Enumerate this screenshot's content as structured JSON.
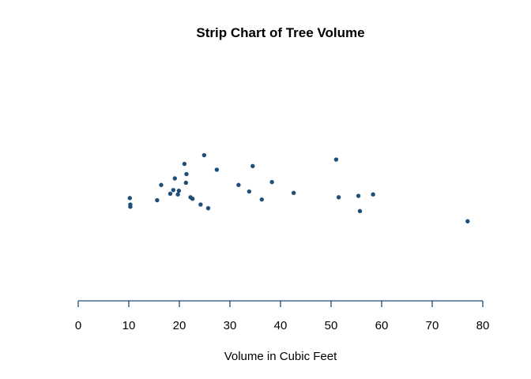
{
  "chart_data": {
    "type": "scatter",
    "title": "Strip Chart of Tree Volume",
    "xlabel": "Volume in Cubic Feet",
    "ylabel": "",
    "xlim": [
      0,
      80
    ],
    "xticks": [
      0,
      10,
      20,
      30,
      40,
      50,
      60,
      70,
      80
    ],
    "tick_labels": [
      "0",
      "10",
      "20",
      "30",
      "40",
      "50",
      "60",
      "70",
      "80"
    ],
    "grid": false,
    "jitter": true,
    "point_color": "#1f4e79",
    "axis_color": "#1f4e79",
    "values": [
      10.3,
      10.3,
      10.2,
      16.4,
      18.8,
      19.7,
      15.6,
      18.2,
      22.6,
      19.9,
      24.2,
      21.0,
      21.4,
      21.3,
      19.1,
      22.2,
      33.8,
      27.4,
      25.7,
      24.9,
      34.5,
      31.7,
      36.3,
      38.3,
      42.6,
      55.4,
      55.7,
      58.3,
      51.5,
      51.0,
      77.0
    ],
    "jitter_offsets": [
      0.27,
      0.24,
      0.15,
      -0.03,
      0.04,
      0.1,
      0.18,
      0.09,
      0.16,
      0.05,
      0.24,
      -0.32,
      -0.18,
      -0.06,
      -0.12,
      0.14,
      0.06,
      -0.24,
      0.29,
      -0.44,
      -0.29,
      -0.03,
      0.17,
      -0.07,
      0.08,
      0.12,
      0.33,
      0.1,
      0.14,
      -0.38,
      0.47
    ]
  }
}
